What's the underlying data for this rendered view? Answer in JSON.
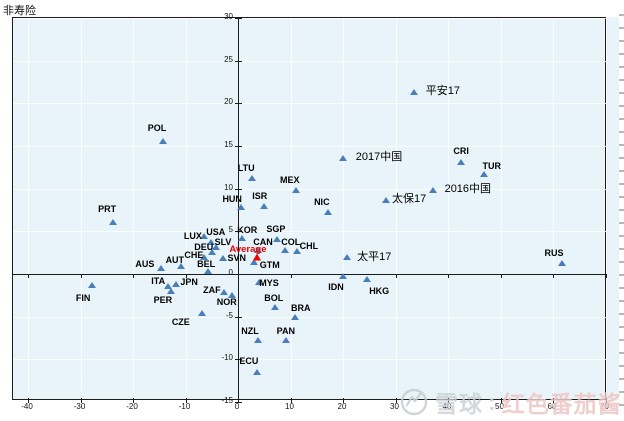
{
  "page": {
    "title_label": "非寿险"
  },
  "watermark": {
    "brand": "雪球",
    "separator": ":",
    "username": "红色番茄酱",
    "brand_color": "#ccd2d7",
    "username_color": "#edc7c5",
    "logo": "xueqiu-snowball-logo"
  },
  "chart_data": {
    "type": "scatter",
    "title": "非寿险",
    "xlabel": "",
    "ylabel": "非寿险",
    "grid": true,
    "legend": "none",
    "plot_bg": "#e8f4f9",
    "grid_color": "rgba(255,255,255,0.8)",
    "marker": "triangle",
    "point_color": "#4a7ebb",
    "highlight_color": "#f00000",
    "x_axis": {
      "min": -42.9,
      "max": 70.3,
      "tick_interval": 10,
      "ticks": [
        -40,
        -30,
        -20,
        -10,
        0,
        10,
        20,
        30,
        40,
        50,
        60,
        70
      ]
    },
    "y_axis": {
      "min": -15,
      "max": 30,
      "tick_interval": 5,
      "ticks": [
        30,
        25,
        20,
        15,
        10,
        5,
        0,
        -5,
        -10,
        -15
      ]
    },
    "series": [
      {
        "name": "countries",
        "color": "#4a7ebb",
        "points": [
          {
            "label": "POL",
            "x": -14.1,
            "y": 15.5,
            "dx": -6,
            "dy": -13
          },
          {
            "label": "PRT",
            "x": -23.6,
            "y": 6.0,
            "dx": -6,
            "dy": -13
          },
          {
            "label": "FIN",
            "x": -27.6,
            "y": -1.4,
            "dx": -9,
            "dy": 13
          },
          {
            "label": "AUS",
            "x": -14.5,
            "y": 0.6,
            "dx": -16,
            "dy": -4
          },
          {
            "label": "AUT",
            "x": -10.7,
            "y": 0.8,
            "dx": -6,
            "dy": -6
          },
          {
            "label": "CHE",
            "x": -6.3,
            "y": 1.9,
            "dx": -10,
            "dy": -2
          },
          {
            "label": "LUX",
            "x": -6.3,
            "y": 4.3,
            "dx": -11,
            "dy": 0
          },
          {
            "label": "USA",
            "x": -5.0,
            "y": 3.6,
            "dx": 5,
            "dy": -10
          },
          {
            "label": "SLV",
            "x": -4.0,
            "y": 3.0,
            "dx": 7,
            "dy": -5
          },
          {
            "label": "DEU",
            "x": -4.8,
            "y": 2.5,
            "dx": -8,
            "dy": -5
          },
          {
            "label": "BEL",
            "x": -5.5,
            "y": 0.2,
            "dx": -2,
            "dy": -7
          },
          {
            "label": "SVN",
            "x": -2.7,
            "y": 1.8,
            "dx": 14,
            "dy": 0
          },
          {
            "label": "ITA",
            "x": -13.1,
            "y": -1.5,
            "dx": -10,
            "dy": -5
          },
          {
            "label": "JPN",
            "x": -11.6,
            "y": -1.3,
            "dx": 13,
            "dy": -2
          },
          {
            "label": "PER",
            "x": -12.6,
            "y": -2.1,
            "dx": -8,
            "dy": 9
          },
          {
            "label": "CZE",
            "x": -6.7,
            "y": -4.7,
            "dx": -21,
            "dy": 9
          },
          {
            "label": "ZAF",
            "x": -2.5,
            "y": -2.2,
            "dx": -12,
            "dy": -2
          },
          {
            "label": "NOR",
            "x": -1.0,
            "y": -2.6,
            "dx": -5,
            "dy": 7
          },
          {
            "label": "HUN",
            "x": 0.8,
            "y": 7.7,
            "dx": -9,
            "dy": -8
          },
          {
            "label": "LTU",
            "x": 2.9,
            "y": 11.1,
            "dx": -6,
            "dy": -10
          },
          {
            "label": "KOR",
            "x": 1.0,
            "y": 4.1,
            "dx": 5,
            "dy": -8
          },
          {
            "label": "ISR",
            "x": 5.1,
            "y": 7.9,
            "dx": -4,
            "dy": -10
          },
          {
            "label": "MEX",
            "x": 11.2,
            "y": 9.7,
            "dx": -6,
            "dy": -10
          },
          {
            "label": "SGP",
            "x": 7.6,
            "y": 4.0,
            "dx": -1,
            "dy": -10
          },
          {
            "label": "CAN",
            "x": 4.0,
            "y": 2.7,
            "dx": 5,
            "dy": -8
          },
          {
            "label": "COL",
            "x": 9.1,
            "y": 2.7,
            "dx": 6,
            "dy": -8
          },
          {
            "label": "CHL",
            "x": 11.4,
            "y": 2.6,
            "dx": 12,
            "dy": -5
          },
          {
            "label": "GTM",
            "x": 3.2,
            "y": 1.3,
            "dx": 16,
            "dy": 3
          },
          {
            "label": "MYS",
            "x": 4.2,
            "y": -1.1,
            "dx": 10,
            "dy": 1
          },
          {
            "label": "NZL",
            "x": 4.0,
            "y": -7.9,
            "dx": -8,
            "dy": -9
          },
          {
            "label": "ECU",
            "x": 3.8,
            "y": -11.6,
            "dx": -8,
            "dy": -11
          },
          {
            "label": "PAN",
            "x": 9.3,
            "y": -7.9,
            "dx": 0,
            "dy": -9
          },
          {
            "label": "BRA",
            "x": 11.0,
            "y": -5.2,
            "dx": 6,
            "dy": -9
          },
          {
            "label": "BOL",
            "x": 7.2,
            "y": -4.0,
            "dx": -1,
            "dy": -9
          },
          {
            "label": "IDN",
            "x": 20.2,
            "y": -0.4,
            "dx": -7,
            "dy": 11
          },
          {
            "label": "HKG",
            "x": 24.8,
            "y": -0.7,
            "dx": 12,
            "dy": 12
          },
          {
            "label": "NIC",
            "x": 17.3,
            "y": 7.1,
            "dx": -6,
            "dy": -10
          },
          {
            "label": "RUS",
            "x": 61.9,
            "y": 1.2,
            "dx": -8,
            "dy": -10
          },
          {
            "label": "CRI",
            "x": 42.7,
            "y": 13.0,
            "dx": 0,
            "dy": -11
          },
          {
            "label": "TUR",
            "x": 47.0,
            "y": 11.6,
            "dx": 8,
            "dy": -8
          },
          {
            "label": "太平17",
            "x": 21.0,
            "y": 1.9,
            "dx": 27,
            "dy": 0
          },
          {
            "label": "2017中国",
            "x": 20.2,
            "y": 13.5,
            "dx": 36,
            "dy": -1
          },
          {
            "label": "太保17",
            "x": 28.4,
            "y": 8.6,
            "dx": 23,
            "dy": -1
          },
          {
            "label": "2016中国",
            "x": 37.3,
            "y": 9.7,
            "dx": 35,
            "dy": -1
          },
          {
            "label": "平安17",
            "x": 33.7,
            "y": 21.2,
            "dx": 29,
            "dy": -1
          }
        ]
      },
      {
        "name": "average-highlight",
        "color": "#f00000",
        "points": [
          {
            "label": "Average",
            "x": 3.8,
            "y": 1.9,
            "dx": -9,
            "dy": -7
          }
        ]
      }
    ]
  }
}
